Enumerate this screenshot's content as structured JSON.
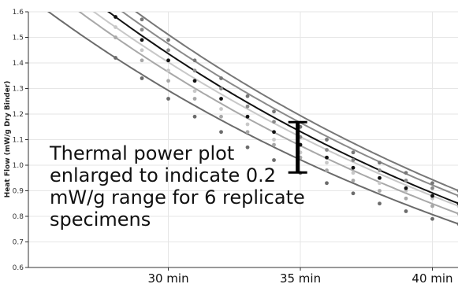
{
  "chart_data": {
    "type": "line",
    "ylabel": "Heat Flow (mW/g Dry Binder)",
    "xlabel": "",
    "x_unit": "min",
    "xlim": [
      24.7,
      41.0
    ],
    "ylim": [
      0.6,
      1.6
    ],
    "x_ticks": [
      {
        "value": 30,
        "label": "30 min"
      },
      {
        "value": 35,
        "label": "35 min"
      },
      {
        "value": 40,
        "label": "40 min"
      }
    ],
    "y_ticks": [
      {
        "value": 0.6,
        "label": "0.6"
      },
      {
        "value": 0.7,
        "label": "0.7"
      },
      {
        "value": 0.8,
        "label": "0.8"
      },
      {
        "value": 0.9,
        "label": "0.9"
      },
      {
        "value": 1.0,
        "label": "1.0"
      },
      {
        "value": 1.1,
        "label": "1.1"
      },
      {
        "value": 1.2,
        "label": "1.2"
      },
      {
        "value": 1.3,
        "label": "1.3"
      },
      {
        "value": 1.4,
        "label": "1.4"
      },
      {
        "value": 1.5,
        "label": "1.5"
      },
      {
        "value": 1.6,
        "label": "1.6"
      }
    ],
    "grid": true,
    "x": [
      28.0,
      29.0,
      30.0,
      31.0,
      32.0,
      33.0,
      34.0,
      35.0,
      36.0,
      37.0,
      38.0,
      39.0,
      40.0,
      41.0
    ],
    "series": [
      {
        "color": "#6b6b6b",
        "values": [
          1.42,
          1.34,
          1.26,
          1.19,
          1.13,
          1.07,
          1.02,
          0.97,
          0.93,
          0.89,
          0.85,
          0.82,
          0.79,
          0.77
        ]
      },
      {
        "color": "#a8a8a8",
        "values": [
          1.5,
          1.41,
          1.33,
          1.26,
          1.19,
          1.13,
          1.08,
          1.03,
          0.98,
          0.94,
          0.9,
          0.87,
          0.84,
          0.81
        ]
      },
      {
        "color": "#c8c8c8",
        "values": [
          1.54,
          1.45,
          1.37,
          1.29,
          1.22,
          1.16,
          1.1,
          1.05,
          1.01,
          0.97,
          0.93,
          0.9,
          0.87,
          0.84
        ]
      },
      {
        "color": "#111111",
        "values": [
          1.58,
          1.49,
          1.41,
          1.33,
          1.26,
          1.19,
          1.13,
          1.08,
          1.03,
          0.99,
          0.95,
          0.91,
          0.88,
          0.85
        ]
      },
      {
        "color": "#8a8a8a",
        "values": [
          1.62,
          1.53,
          1.45,
          1.37,
          1.3,
          1.23,
          1.17,
          1.11,
          1.06,
          1.02,
          0.98,
          0.94,
          0.91,
          0.88
        ]
      },
      {
        "color": "#777777",
        "values": [
          1.66,
          1.57,
          1.49,
          1.41,
          1.34,
          1.27,
          1.21,
          1.15,
          1.1,
          1.05,
          1.01,
          0.97,
          0.93,
          0.9
        ]
      }
    ],
    "range_bar": {
      "x": 34.9,
      "y_low": 0.97,
      "y_high": 1.17
    },
    "annotation": [
      "Thermal power plot",
      "enlarged to indicate 0.2",
      "mW/g range for 6 replicate",
      "specimens"
    ]
  }
}
